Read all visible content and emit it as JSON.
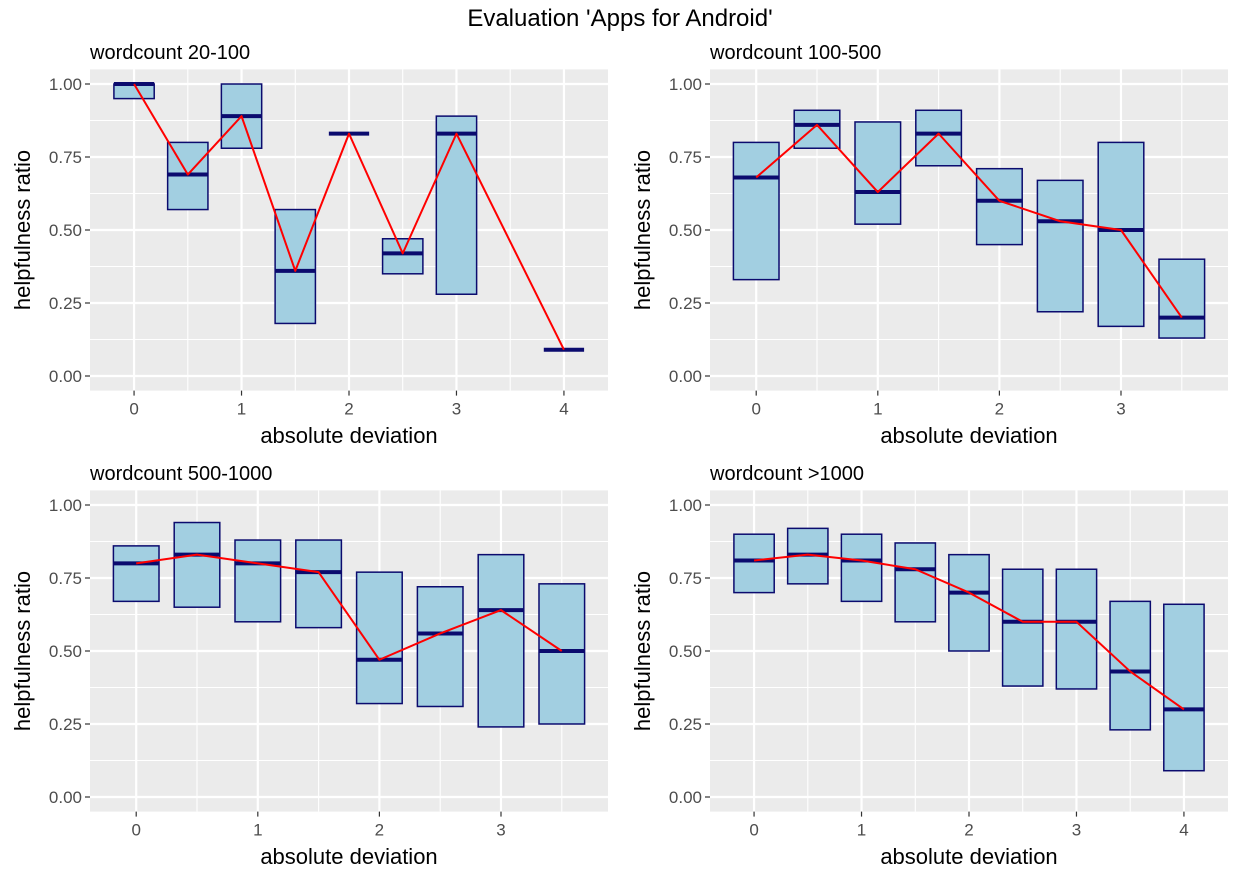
{
  "title": "Evaluation 'Apps for Android'",
  "colors": {
    "panel_background": "#EBEBEB",
    "gridline": "#FFFFFF",
    "box_fill": "#A2CFE1",
    "box_border": "#0B0B6E",
    "median_bar": "#0B0B6E",
    "trend_line": "#FF0000"
  },
  "chart_data": [
    {
      "type": "boxplot",
      "title": "wordcount 20-100",
      "xlabel": "absolute deviation",
      "ylabel": "helpfulness ratio",
      "xlim": [
        -0.41,
        4.41
      ],
      "ylim": [
        -0.05,
        1.05
      ],
      "grid": true,
      "xticks": [
        0,
        1,
        2,
        3,
        4
      ],
      "xtick_labels": [
        "0",
        "1",
        "2",
        "3",
        "4"
      ],
      "yticks": [
        0,
        0.25,
        0.5,
        0.75,
        1
      ],
      "ytick_labels": [
        "0.00",
        "0.25",
        "0.50",
        "0.75",
        "1.00"
      ],
      "x": [
        0,
        0.5,
        1,
        1.5,
        2,
        2.5,
        3,
        4
      ],
      "lower": [
        0.95,
        0.57,
        0.78,
        0.18,
        0.83,
        0.35,
        0.28,
        0.09
      ],
      "median": [
        1,
        0.69,
        0.89,
        0.36,
        0.83,
        0.42,
        0.83,
        0.09
      ],
      "upper": [
        1,
        0.8,
        1,
        0.57,
        0.83,
        0.47,
        0.89,
        0.09
      ],
      "line": {
        "x": [
          0,
          0.5,
          1,
          1.5,
          2,
          2.5,
          3,
          4
        ],
        "y": [
          1,
          0.69,
          0.89,
          0.36,
          0.83,
          0.42,
          0.83,
          0.09
        ]
      }
    },
    {
      "type": "boxplot",
      "title": "wordcount 100-500",
      "xlabel": "absolute deviation",
      "ylabel": "helpfulness ratio",
      "xlim": [
        -0.38,
        3.88
      ],
      "ylim": [
        -0.05,
        1.05
      ],
      "grid": true,
      "xticks": [
        0,
        1,
        2,
        3
      ],
      "xtick_labels": [
        "0",
        "1",
        "2",
        "3"
      ],
      "yticks": [
        0,
        0.25,
        0.5,
        0.75,
        1
      ],
      "ytick_labels": [
        "0.00",
        "0.25",
        "0.50",
        "0.75",
        "1.00"
      ],
      "x": [
        0,
        0.5,
        1,
        1.5,
        2,
        2.5,
        3,
        3.5
      ],
      "lower": [
        0.33,
        0.78,
        0.52,
        0.72,
        0.45,
        0.22,
        0.17,
        0.13
      ],
      "median": [
        0.68,
        0.86,
        0.63,
        0.83,
        0.6,
        0.53,
        0.5,
        0.2
      ],
      "upper": [
        0.8,
        0.91,
        0.87,
        0.91,
        0.71,
        0.67,
        0.8,
        0.4
      ],
      "line": {
        "x": [
          0,
          0.5,
          1,
          1.5,
          2,
          2.5,
          3,
          3.5
        ],
        "y": [
          0.68,
          0.86,
          0.63,
          0.83,
          0.6,
          0.53,
          0.5,
          0.2
        ]
      }
    },
    {
      "type": "boxplot",
      "title": "wordcount 500-1000",
      "xlabel": "absolute deviation",
      "ylabel": "helpfulness ratio",
      "xlim": [
        -0.38,
        3.88
      ],
      "ylim": [
        -0.05,
        1.05
      ],
      "grid": true,
      "xticks": [
        0,
        1,
        2,
        3
      ],
      "xtick_labels": [
        "0",
        "1",
        "2",
        "3"
      ],
      "yticks": [
        0,
        0.25,
        0.5,
        0.75,
        1
      ],
      "ytick_labels": [
        "0.00",
        "0.25",
        "0.50",
        "0.75",
        "1.00"
      ],
      "x": [
        0,
        0.5,
        1,
        1.5,
        2,
        2.5,
        3,
        3.5
      ],
      "lower": [
        0.67,
        0.65,
        0.6,
        0.58,
        0.32,
        0.31,
        0.24,
        0.25
      ],
      "median": [
        0.8,
        0.83,
        0.8,
        0.77,
        0.47,
        0.56,
        0.64,
        0.5
      ],
      "upper": [
        0.86,
        0.94,
        0.88,
        0.88,
        0.77,
        0.72,
        0.83,
        0.73
      ],
      "line": {
        "x": [
          0,
          0.5,
          1,
          1.5,
          2,
          2.5,
          3,
          3.5
        ],
        "y": [
          0.8,
          0.83,
          0.8,
          0.77,
          0.47,
          0.56,
          0.64,
          0.5
        ]
      }
    },
    {
      "type": "boxplot",
      "title": "wordcount >1000",
      "xlabel": "absolute deviation",
      "ylabel": "helpfulness ratio",
      "xlim": [
        -0.41,
        4.41
      ],
      "ylim": [
        -0.05,
        1.05
      ],
      "grid": true,
      "xticks": [
        0,
        1,
        2,
        3,
        4
      ],
      "xtick_labels": [
        "0",
        "1",
        "2",
        "3",
        "4"
      ],
      "yticks": [
        0,
        0.25,
        0.5,
        0.75,
        1
      ],
      "ytick_labels": [
        "0.00",
        "0.25",
        "0.50",
        "0.75",
        "1.00"
      ],
      "x": [
        0,
        0.5,
        1,
        1.5,
        2,
        2.5,
        3,
        3.5,
        4
      ],
      "lower": [
        0.7,
        0.73,
        0.67,
        0.6,
        0.5,
        0.38,
        0.37,
        0.23,
        0.09
      ],
      "median": [
        0.81,
        0.83,
        0.81,
        0.78,
        0.7,
        0.6,
        0.6,
        0.43,
        0.3
      ],
      "upper": [
        0.9,
        0.92,
        0.9,
        0.87,
        0.83,
        0.78,
        0.78,
        0.67,
        0.66
      ],
      "line": {
        "x": [
          0,
          0.5,
          1,
          1.5,
          2,
          2.5,
          3,
          3.5,
          4
        ],
        "y": [
          0.81,
          0.83,
          0.81,
          0.78,
          0.7,
          0.6,
          0.6,
          0.43,
          0.3
        ]
      }
    }
  ]
}
